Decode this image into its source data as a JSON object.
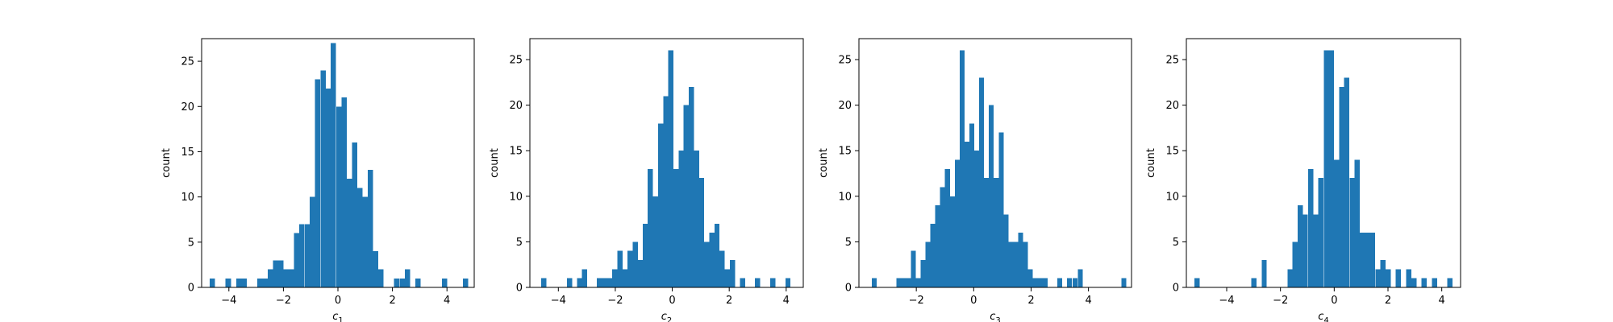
{
  "chart_data": [
    {
      "type": "bar",
      "subtype": "histogram",
      "xlabel": "c",
      "xlabel_sub": "1",
      "ylabel": "count",
      "xlim": [
        -5.0,
        5.0
      ],
      "ylim": [
        0,
        27.5
      ],
      "xticks": [
        -4,
        -2,
        0,
        2,
        4
      ],
      "yticks": [
        0,
        5,
        10,
        15,
        20,
        25
      ],
      "bar_color": "#1f77b4",
      "bin_width": 0.193,
      "bins": [
        [
          -4.7,
          1
        ],
        [
          -4.12,
          1
        ],
        [
          -3.73,
          1
        ],
        [
          -3.54,
          1
        ],
        [
          -2.96,
          1
        ],
        [
          -2.77,
          1
        ],
        [
          -2.58,
          2
        ],
        [
          -2.38,
          3
        ],
        [
          -2.19,
          3
        ],
        [
          -2.0,
          2
        ],
        [
          -1.8,
          2
        ],
        [
          -1.61,
          6
        ],
        [
          -1.42,
          7
        ],
        [
          -1.22,
          7
        ],
        [
          -1.03,
          10
        ],
        [
          -0.84,
          23
        ],
        [
          -0.64,
          24
        ],
        [
          -0.45,
          22
        ],
        [
          -0.26,
          27
        ],
        [
          -0.06,
          20
        ],
        [
          0.13,
          21
        ],
        [
          0.32,
          12
        ],
        [
          0.52,
          16
        ],
        [
          0.71,
          11
        ],
        [
          0.9,
          10
        ],
        [
          1.1,
          13
        ],
        [
          1.29,
          4
        ],
        [
          1.48,
          2
        ],
        [
          2.06,
          1
        ],
        [
          2.26,
          1
        ],
        [
          2.45,
          2
        ],
        [
          2.84,
          1
        ],
        [
          3.81,
          1
        ],
        [
          4.58,
          1
        ]
      ]
    },
    {
      "type": "bar",
      "subtype": "histogram",
      "xlabel": "c",
      "xlabel_sub": "2",
      "ylabel": "count",
      "xlim": [
        -5.0,
        4.6
      ],
      "ylim": [
        0,
        27.3
      ],
      "xticks": [
        -4,
        -2,
        0,
        2,
        4
      ],
      "yticks": [
        0,
        5,
        10,
        15,
        20,
        25
      ],
      "bar_color": "#1f77b4",
      "bin_width": 0.18,
      "bins": [
        [
          -4.6,
          1
        ],
        [
          -3.7,
          1
        ],
        [
          -3.35,
          1
        ],
        [
          -3.17,
          2
        ],
        [
          -2.65,
          1
        ],
        [
          -2.47,
          1
        ],
        [
          -2.29,
          1
        ],
        [
          -2.11,
          2
        ],
        [
          -1.93,
          4
        ],
        [
          -1.75,
          2
        ],
        [
          -1.57,
          4
        ],
        [
          -1.39,
          5
        ],
        [
          -1.22,
          3
        ],
        [
          -1.04,
          7
        ],
        [
          -0.86,
          13
        ],
        [
          -0.68,
          10
        ],
        [
          -0.5,
          18
        ],
        [
          -0.32,
          21
        ],
        [
          -0.14,
          26
        ],
        [
          0.04,
          13
        ],
        [
          0.22,
          15
        ],
        [
          0.4,
          20
        ],
        [
          0.58,
          22
        ],
        [
          0.76,
          15
        ],
        [
          0.94,
          12
        ],
        [
          1.12,
          5
        ],
        [
          1.3,
          6
        ],
        [
          1.48,
          7
        ],
        [
          1.66,
          4
        ],
        [
          1.84,
          2
        ],
        [
          2.02,
          3
        ],
        [
          2.38,
          1
        ],
        [
          2.9,
          1
        ],
        [
          3.44,
          1
        ],
        [
          3.97,
          1
        ]
      ]
    },
    {
      "type": "bar",
      "subtype": "histogram",
      "xlabel": "c",
      "xlabel_sub": "3",
      "ylabel": "count",
      "xlim": [
        -4.0,
        5.5
      ],
      "ylim": [
        0,
        27.3
      ],
      "xticks": [
        -2,
        0,
        2,
        4
      ],
      "yticks": [
        0,
        5,
        10,
        15,
        20,
        25
      ],
      "bar_color": "#1f77b4",
      "bin_width": 0.17,
      "bins": [
        [
          -3.55,
          1
        ],
        [
          -2.7,
          1
        ],
        [
          -2.53,
          1
        ],
        [
          -2.36,
          1
        ],
        [
          -2.19,
          4
        ],
        [
          -2.02,
          1
        ],
        [
          -1.85,
          3
        ],
        [
          -1.68,
          5
        ],
        [
          -1.51,
          7
        ],
        [
          -1.34,
          9
        ],
        [
          -1.17,
          11
        ],
        [
          -1.0,
          13
        ],
        [
          -0.83,
          10
        ],
        [
          -0.66,
          14
        ],
        [
          -0.49,
          26
        ],
        [
          -0.32,
          16
        ],
        [
          -0.15,
          18
        ],
        [
          0.02,
          15
        ],
        [
          0.19,
          23
        ],
        [
          0.36,
          12
        ],
        [
          0.53,
          20
        ],
        [
          0.7,
          12
        ],
        [
          0.87,
          17
        ],
        [
          1.04,
          8
        ],
        [
          1.21,
          5
        ],
        [
          1.38,
          5
        ],
        [
          1.55,
          6
        ],
        [
          1.72,
          5
        ],
        [
          1.89,
          2
        ],
        [
          2.06,
          1
        ],
        [
          2.23,
          1
        ],
        [
          2.4,
          1
        ],
        [
          2.91,
          1
        ],
        [
          3.25,
          1
        ],
        [
          3.45,
          1
        ],
        [
          3.63,
          2
        ],
        [
          5.15,
          1
        ]
      ]
    },
    {
      "type": "bar",
      "subtype": "histogram",
      "xlabel": "c",
      "xlabel_sub": "4",
      "ylabel": "count",
      "xlim": [
        -5.5,
        4.7
      ],
      "ylim": [
        0,
        27.3
      ],
      "xticks": [
        -4,
        -2,
        0,
        2,
        4
      ],
      "yticks": [
        0,
        5,
        10,
        15,
        20,
        25
      ],
      "bar_color": "#1f77b4",
      "bin_width": 0.192,
      "bins": [
        [
          -5.2,
          1
        ],
        [
          -3.08,
          1
        ],
        [
          -2.7,
          3
        ],
        [
          -1.74,
          2
        ],
        [
          -1.55,
          5
        ],
        [
          -1.36,
          9
        ],
        [
          -1.17,
          8
        ],
        [
          -0.97,
          13
        ],
        [
          -0.78,
          8
        ],
        [
          -0.59,
          12
        ],
        [
          -0.39,
          26
        ],
        [
          -0.2,
          26
        ],
        [
          -0.01,
          14
        ],
        [
          0.18,
          22
        ],
        [
          0.37,
          23
        ],
        [
          0.57,
          12
        ],
        [
          0.76,
          14
        ],
        [
          0.95,
          6
        ],
        [
          1.14,
          6
        ],
        [
          1.33,
          6
        ],
        [
          1.53,
          2
        ],
        [
          1.72,
          3
        ],
        [
          1.91,
          2
        ],
        [
          2.29,
          2
        ],
        [
          2.68,
          2
        ],
        [
          2.87,
          1
        ],
        [
          3.25,
          1
        ],
        [
          3.64,
          1
        ],
        [
          4.21,
          1
        ]
      ]
    }
  ]
}
